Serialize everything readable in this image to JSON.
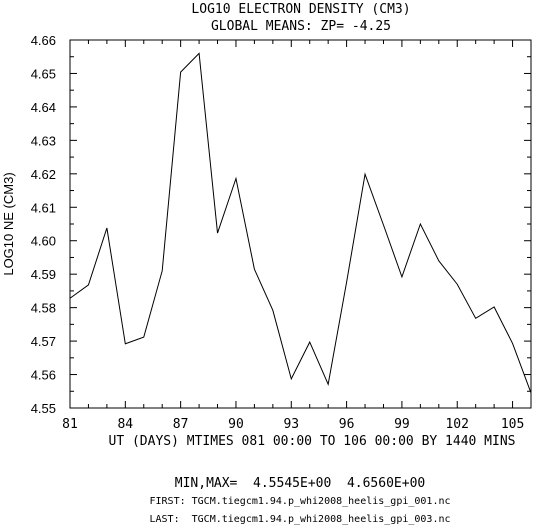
{
  "chart_data": {
    "type": "line",
    "title": "LOG10 ELECTRON DENSITY (CM3)",
    "subtitle": "GLOBAL MEANS: ZP= -4.25",
    "xlabel": "UT (DAYS) MTIMES 081 00:00 TO 106 00:00 BY 1440 MINS",
    "ylabel": "LOG10 NE (CM3)",
    "xlim": [
      81,
      106
    ],
    "ylim": [
      4.55,
      4.66
    ],
    "x_ticks": [
      81,
      84,
      87,
      90,
      93,
      96,
      99,
      102,
      105
    ],
    "x_tick_labels": [
      "81",
      "84",
      "87",
      "90",
      "93",
      "96",
      "99",
      "102",
      "105"
    ],
    "y_ticks": [
      4.55,
      4.56,
      4.57,
      4.58,
      4.59,
      4.6,
      4.61,
      4.62,
      4.63,
      4.64,
      4.65,
      4.66
    ],
    "y_tick_labels": [
      "4.55",
      "4.56",
      "4.57",
      "4.58",
      "4.59",
      "4.60",
      "4.61",
      "4.62",
      "4.63",
      "4.64",
      "4.65",
      "4.66"
    ],
    "grid": false,
    "series": [
      {
        "x": [
          81,
          82,
          83,
          84,
          85,
          86,
          87,
          88,
          89,
          90,
          91,
          92,
          93,
          94,
          95,
          96,
          97,
          98,
          99,
          100,
          101,
          102,
          103,
          104,
          105,
          106
        ],
        "values": [
          4.5828,
          4.5868,
          4.6038,
          4.5692,
          4.5712,
          4.591,
          4.6504,
          4.656,
          4.6023,
          4.6186,
          4.5915,
          4.5792,
          4.5587,
          4.5697,
          4.5571,
          4.5876,
          4.6199,
          4.6047,
          4.5892,
          4.605,
          4.594,
          4.587,
          4.5768,
          4.5802,
          4.5693,
          4.5545
        ]
      }
    ]
  },
  "footer": {
    "minmax": "MIN,MAX=  4.5545E+00  4.6560E+00",
    "first": "FIRST: TGCM.tiegcm1.94.p_whi2008_heelis_gpi_001.nc",
    "last": "LAST:  TGCM.tiegcm1.94.p_whi2008_heelis_gpi_003.nc"
  }
}
